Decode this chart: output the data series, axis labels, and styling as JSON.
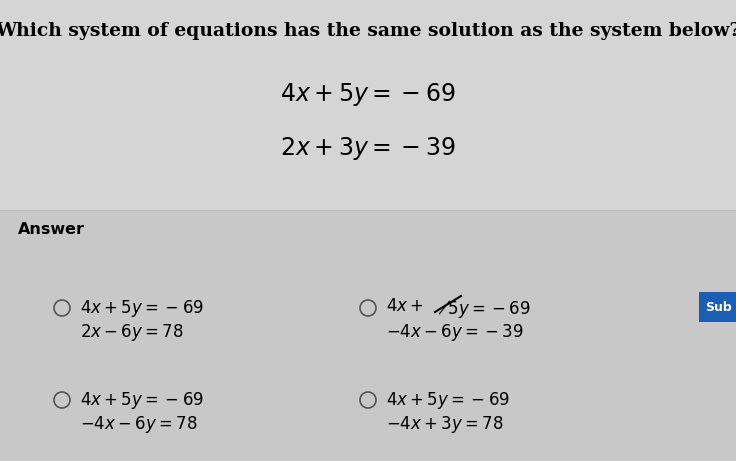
{
  "title": "Which system of equations has the same solution as the system below?",
  "system_line1": "$4x + 5y = -69$",
  "system_line2": "$2x + 3y = -39$",
  "answer_label": "Answer",
  "options": [
    {
      "line1": "$4x + 5y = -69$",
      "line2": "$2x - 6y = 78$"
    },
    {
      "line1_a": "$4x +$",
      "line1_b": "$5y = -69$",
      "line2": "$-4x - 6y = -39$",
      "strikethrough": true
    },
    {
      "line1": "$4x + 5y = -69$",
      "line2": "$-4x - 6y = 78$"
    },
    {
      "line1": "$4x + 5y = -69$",
      "line2": "$-4x + 3y = 78$"
    }
  ],
  "bg_color": "#c8c8c8",
  "top_bg_color": "#d5d5d5",
  "submit_btn_color": "#1a5fb4",
  "submit_btn_text": "Sub",
  "title_fontsize": 13.5,
  "system_fontsize": 17,
  "answer_fontsize": 11,
  "option_fontsize": 12
}
